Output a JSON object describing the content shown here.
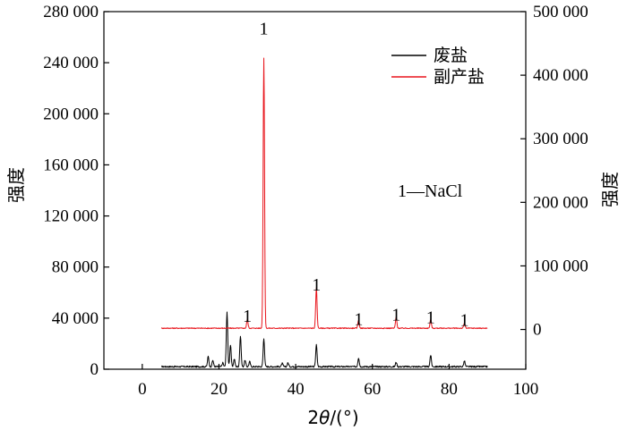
{
  "chart_data": {
    "type": "line",
    "xlabel_prefix": "2",
    "xlabel_var": "θ",
    "xlabel_suffix": "/(°)",
    "ylabel_left": "强度",
    "ylabel_right": "强度",
    "xlim": [
      -10,
      100
    ],
    "xticks": [
      0,
      20,
      40,
      60,
      80,
      100
    ],
    "ylim_left": [
      0,
      280000
    ],
    "yticks_left": [
      0,
      40000,
      80000,
      120000,
      160000,
      200000,
      240000,
      280000
    ],
    "ytick_labels_left": [
      "0",
      "40 000",
      "80 000",
      "120 000",
      "160 000",
      "200 000",
      "240 000",
      "280 000"
    ],
    "ylim_right": [
      -62500,
      500000
    ],
    "yticks_right": [
      0,
      100000,
      200000,
      300000,
      400000,
      500000
    ],
    "ytick_labels_right": [
      "0",
      "100 000",
      "200 000",
      "300 000",
      "400 000",
      "500 000"
    ],
    "legend_position": "top-right",
    "colors": {
      "waste_salt": "#000000",
      "byproduct_salt": "#e8141b"
    },
    "series": [
      {
        "name": "废盐",
        "axis": "left",
        "baseline": 2000,
        "peaks": [
          [
            17.2,
            8000
          ],
          [
            18.4,
            5000
          ],
          [
            21.0,
            3000
          ],
          [
            22.1,
            43000
          ],
          [
            23.0,
            17000
          ],
          [
            24.0,
            6000
          ],
          [
            25.6,
            24000
          ],
          [
            26.8,
            5000
          ],
          [
            28.0,
            4000
          ],
          [
            31.7,
            22000
          ],
          [
            36.5,
            2500
          ],
          [
            38.0,
            3000
          ],
          [
            45.4,
            17000
          ],
          [
            56.4,
            7000
          ],
          [
            66.2,
            3500
          ],
          [
            75.2,
            9000
          ],
          [
            84.0,
            4500
          ]
        ]
      },
      {
        "name": "副产盐",
        "axis": "right",
        "baseline": 2000,
        "peaks": [
          [
            27.4,
            14000
          ],
          [
            31.7,
            425000
          ],
          [
            45.4,
            63000
          ],
          [
            56.4,
            13000
          ],
          [
            66.2,
            17000
          ],
          [
            75.2,
            13000
          ],
          [
            84.0,
            8000
          ]
        ]
      }
    ],
    "annotations": [
      {
        "text": "1",
        "x": 31.7,
        "y_axis": "left",
        "y": 262000
      },
      {
        "text": "1",
        "x": 27.4,
        "y_axis": "left",
        "y": 37000
      },
      {
        "text": "1",
        "x": 45.4,
        "y_axis": "left",
        "y": 61500
      },
      {
        "text": "1",
        "x": 56.4,
        "y_axis": "left",
        "y": 34500
      },
      {
        "text": "1",
        "x": 66.2,
        "y_axis": "left",
        "y": 38000
      },
      {
        "text": "1",
        "x": 75.2,
        "y_axis": "left",
        "y": 36000
      },
      {
        "text": "1",
        "x": 84.0,
        "y_axis": "left",
        "y": 34000
      }
    ],
    "key_note": "1—NaCl"
  }
}
